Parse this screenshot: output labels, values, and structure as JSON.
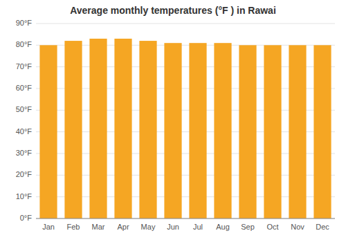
{
  "chart_data": {
    "type": "bar",
    "title": "Average monthly temperatures (°F ) in Rawai",
    "categories": [
      "Jan",
      "Feb",
      "Mar",
      "Apr",
      "May",
      "Jun",
      "Jul",
      "Aug",
      "Sep",
      "Oct",
      "Nov",
      "Dec"
    ],
    "values": [
      80,
      82,
      83,
      83,
      82,
      81,
      81,
      81,
      80,
      80,
      80,
      80
    ],
    "color": "#F5A623",
    "ylim": [
      0,
      90
    ],
    "yticks": [
      {
        "value": 0,
        "label": "0°F"
      },
      {
        "value": 10,
        "label": "10°F"
      },
      {
        "value": 20,
        "label": "20°F"
      },
      {
        "value": 30,
        "label": "30°F"
      },
      {
        "value": 40,
        "label": "40°F"
      },
      {
        "value": 50,
        "label": "50°F"
      },
      {
        "value": 60,
        "label": "60°F"
      },
      {
        "value": 70,
        "label": "70°F"
      },
      {
        "value": 80,
        "label": "80°F"
      },
      {
        "value": 90,
        "label": "90°F"
      }
    ],
    "grid": true
  }
}
